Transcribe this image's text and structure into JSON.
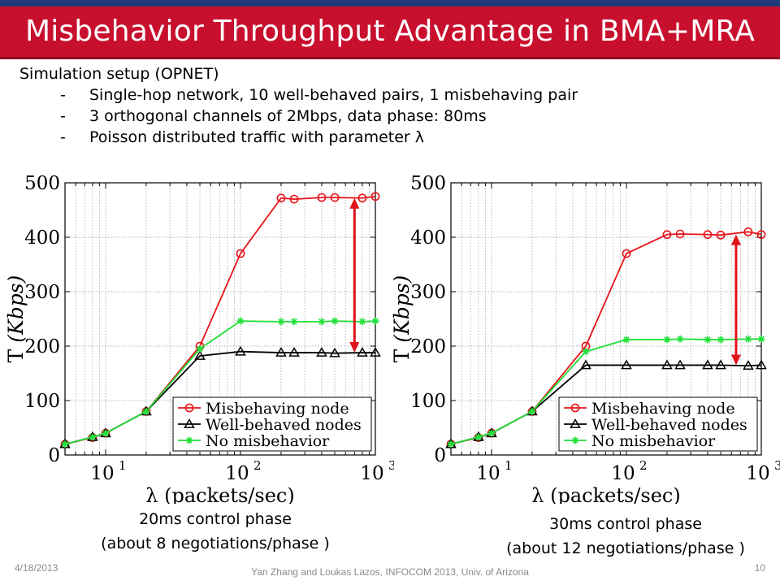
{
  "slide": {
    "title": "Misbehavior Throughput Advantage in BMA+MRA",
    "setup_heading": "Simulation setup (OPNET)",
    "bullets": [
      "Single-hop network, 10 well-behaved pairs, 1 misbehaving pair",
      "3 orthogonal channels of 2Mbps, data phase: 80ms",
      "Poisson distributed traffic with parameter λ"
    ],
    "bullet_marker": "-",
    "caption_left": [
      "20ms control phase",
      "(about 8 negotiations/phase )"
    ],
    "caption_right": [
      "30ms control phase",
      "(about 12 negotiations/phase )"
    ],
    "footer_date": "4/18/2013",
    "footer_center": "Yan Zhang and Loukas Lazos, INFOCOM 2013, Univ. of Arizona",
    "footer_page": "10"
  },
  "colors": {
    "title_bar": "#c8102e",
    "top_band": "#1f3a7a",
    "misbehaving": "#e8141a",
    "well_behaved": "#000000",
    "no_misbehavior": "#22e03a",
    "arrow": "#e0121a"
  },
  "chart_data": [
    {
      "type": "line",
      "xscale": "log",
      "xlim": [
        5,
        1000
      ],
      "ylim": [
        0,
        500
      ],
      "grid": true,
      "legend_position": "bottom-right",
      "ylabel_prefix": "T",
      "ylabel_unit": "(Kbps)",
      "xlabel": "λ (packets/sec)",
      "yticks": [
        0,
        100,
        200,
        300,
        400,
        500
      ],
      "xticks": [
        {
          "value": 10,
          "base": "10",
          "exp": "1"
        },
        {
          "value": 100,
          "base": "10",
          "exp": "2"
        },
        {
          "value": 1000,
          "base": "10",
          "exp": "3"
        }
      ],
      "series": [
        {
          "name": "Misbehaving node",
          "marker": "circle",
          "color": "#e8141a",
          "x": [
            5,
            8,
            10,
            20,
            50,
            100,
            200,
            250,
            400,
            500,
            800,
            1000
          ],
          "y": [
            20,
            32,
            40,
            80,
            200,
            370,
            472,
            470,
            473,
            473,
            472,
            475
          ]
        },
        {
          "name": "Well-behaved nodes",
          "marker": "triangle",
          "color": "#000000",
          "x": [
            5,
            8,
            10,
            20,
            50,
            100,
            200,
            250,
            400,
            500,
            800,
            1000
          ],
          "y": [
            20,
            33,
            40,
            80,
            182,
            190,
            188,
            188,
            188,
            187,
            188,
            188
          ]
        },
        {
          "name": "No misbehavior",
          "marker": "star",
          "color": "#22e03a",
          "x": [
            5,
            8,
            10,
            20,
            50,
            100,
            200,
            250,
            400,
            500,
            800,
            1000
          ],
          "y": [
            20,
            33,
            40,
            80,
            195,
            246,
            245,
            245,
            245,
            246,
            245,
            246
          ]
        }
      ],
      "arrow": {
        "x": 700,
        "y_from": 188,
        "y_to": 472
      }
    },
    {
      "type": "line",
      "xscale": "log",
      "xlim": [
        5,
        1000
      ],
      "ylim": [
        0,
        500
      ],
      "grid": true,
      "legend_position": "bottom-right",
      "ylabel_prefix": "T",
      "ylabel_unit": "(Kbps)",
      "xlabel": "λ (packets/sec)",
      "yticks": [
        0,
        100,
        200,
        300,
        400,
        500
      ],
      "xticks": [
        {
          "value": 10,
          "base": "10",
          "exp": "1"
        },
        {
          "value": 100,
          "base": "10",
          "exp": "2"
        },
        {
          "value": 1000,
          "base": "10",
          "exp": "3"
        }
      ],
      "series": [
        {
          "name": "Misbehaving node",
          "marker": "circle",
          "color": "#e8141a",
          "x": [
            5,
            8,
            10,
            20,
            50,
            100,
            200,
            250,
            400,
            500,
            800,
            1000
          ],
          "y": [
            20,
            32,
            40,
            80,
            200,
            370,
            405,
            406,
            405,
            404,
            410,
            405
          ]
        },
        {
          "name": "Well-behaved nodes",
          "marker": "triangle",
          "color": "#000000",
          "x": [
            5,
            8,
            10,
            20,
            50,
            100,
            200,
            250,
            400,
            500,
            800,
            1000
          ],
          "y": [
            20,
            33,
            40,
            80,
            165,
            165,
            165,
            165,
            165,
            165,
            164,
            165
          ]
        },
        {
          "name": "No misbehavior",
          "marker": "star",
          "color": "#22e03a",
          "x": [
            5,
            8,
            10,
            20,
            50,
            100,
            200,
            250,
            400,
            500,
            800,
            1000
          ],
          "y": [
            20,
            33,
            40,
            80,
            190,
            212,
            212,
            213,
            212,
            212,
            213,
            213
          ]
        }
      ],
      "arrow": {
        "x": 650,
        "y_from": 165,
        "y_to": 405
      }
    }
  ]
}
